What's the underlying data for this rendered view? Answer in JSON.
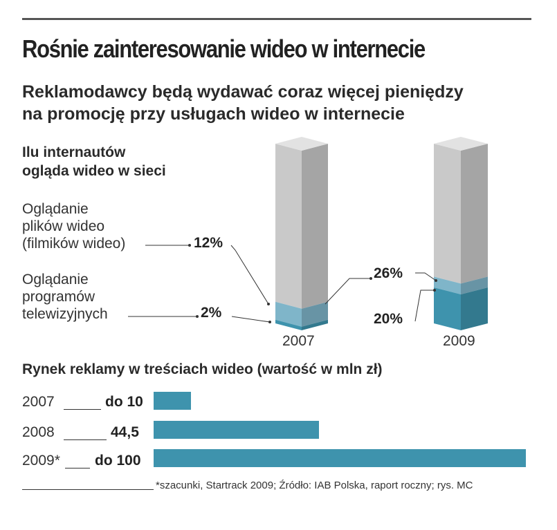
{
  "header": {
    "title": "Rośnie zainteresowanie wideo w internecie",
    "subtitle_lines": [
      "Reklamodawcy będą wydawać coraz więcej pieniędzy",
      "na promocję przy usługach wideo w internecie"
    ]
  },
  "chart_data": [
    {
      "type": "bar",
      "title_lines": [
        "Ilu internautów",
        "ogląda wideo w sieci"
      ],
      "categories": [
        "2007",
        "2009"
      ],
      "series": [
        {
          "name_lines": [
            "Oglądanie",
            "plików wideo",
            "(filmików wideo)"
          ],
          "values": [
            12,
            26
          ],
          "labels": [
            "12%",
            "26%"
          ],
          "color": "#7fb5c9"
        },
        {
          "name_lines": [
            "Oglądanie",
            "programów",
            "telewizyjnych"
          ],
          "values": [
            2,
            20
          ],
          "labels": [
            "2%",
            "20%"
          ],
          "color": "#3e93ad"
        }
      ],
      "column_color": "#c9c9c9",
      "ylim": [
        0,
        100
      ]
    },
    {
      "type": "bar",
      "orientation": "horizontal",
      "title": "Rynek reklamy w treściach wideo (wartość w mln zł)",
      "categories": [
        "2007",
        "2008",
        "2009*"
      ],
      "values": [
        10,
        44.5,
        100
      ],
      "value_labels": [
        "do 10",
        "44,5",
        "do 100"
      ],
      "bar_color": "#3e93ad"
    }
  ],
  "footer": {
    "note": "*szacunki, Startrack 2009;  Źródło: IAB Polska, raport roczny;  rys. MC"
  }
}
